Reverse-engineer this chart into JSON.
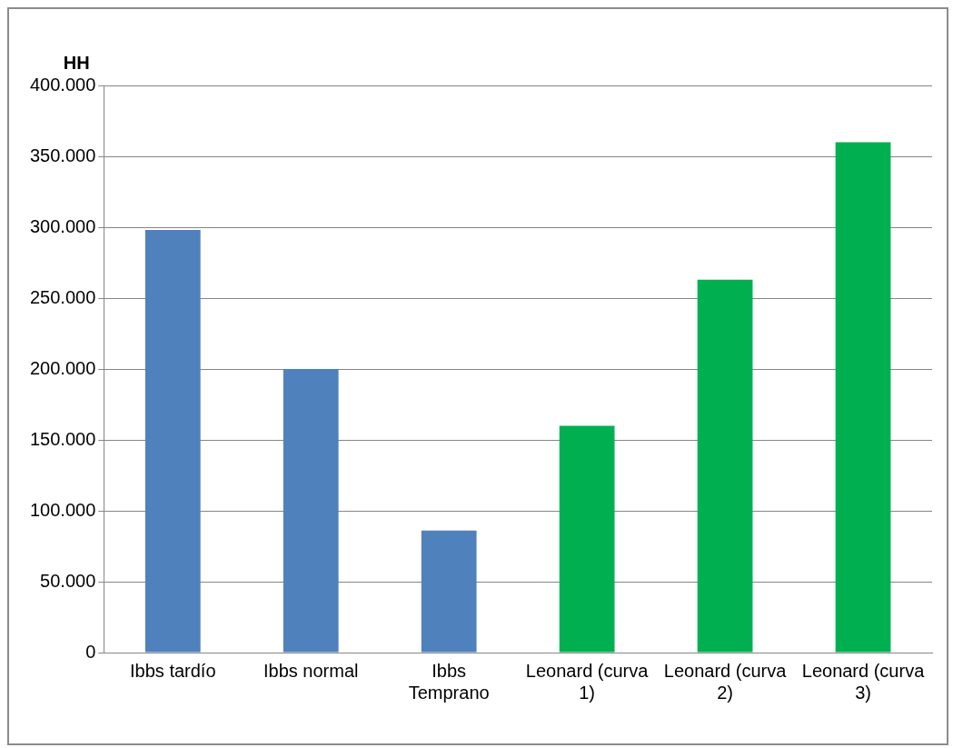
{
  "chart_data": {
    "type": "bar",
    "ylabel": "HH",
    "categories": [
      "Ibbs tardío",
      "Ibbs normal",
      "Ibbs Temprano",
      "Leonard (curva 1)",
      "Leonard (curva 2)",
      "Leonard (curva 3)"
    ],
    "values": [
      298000,
      200000,
      86000,
      160000,
      263000,
      360000
    ],
    "colors": [
      "#4f81bd",
      "#4f81bd",
      "#4f81bd",
      "#00b050",
      "#00b050",
      "#00b050"
    ],
    "ylim": [
      0,
      400000
    ],
    "yticks": [
      {
        "value": 0,
        "label": "0"
      },
      {
        "value": 50000,
        "label": "50.000"
      },
      {
        "value": 100000,
        "label": "100.000"
      },
      {
        "value": 150000,
        "label": "150.000"
      },
      {
        "value": 200000,
        "label": "200.000"
      },
      {
        "value": 250000,
        "label": "250.000"
      },
      {
        "value": 300000,
        "label": "300.000"
      },
      {
        "value": 350000,
        "label": "350.000"
      },
      {
        "value": 400000,
        "label": "400.000"
      }
    ],
    "grid": "y",
    "legend": false
  }
}
